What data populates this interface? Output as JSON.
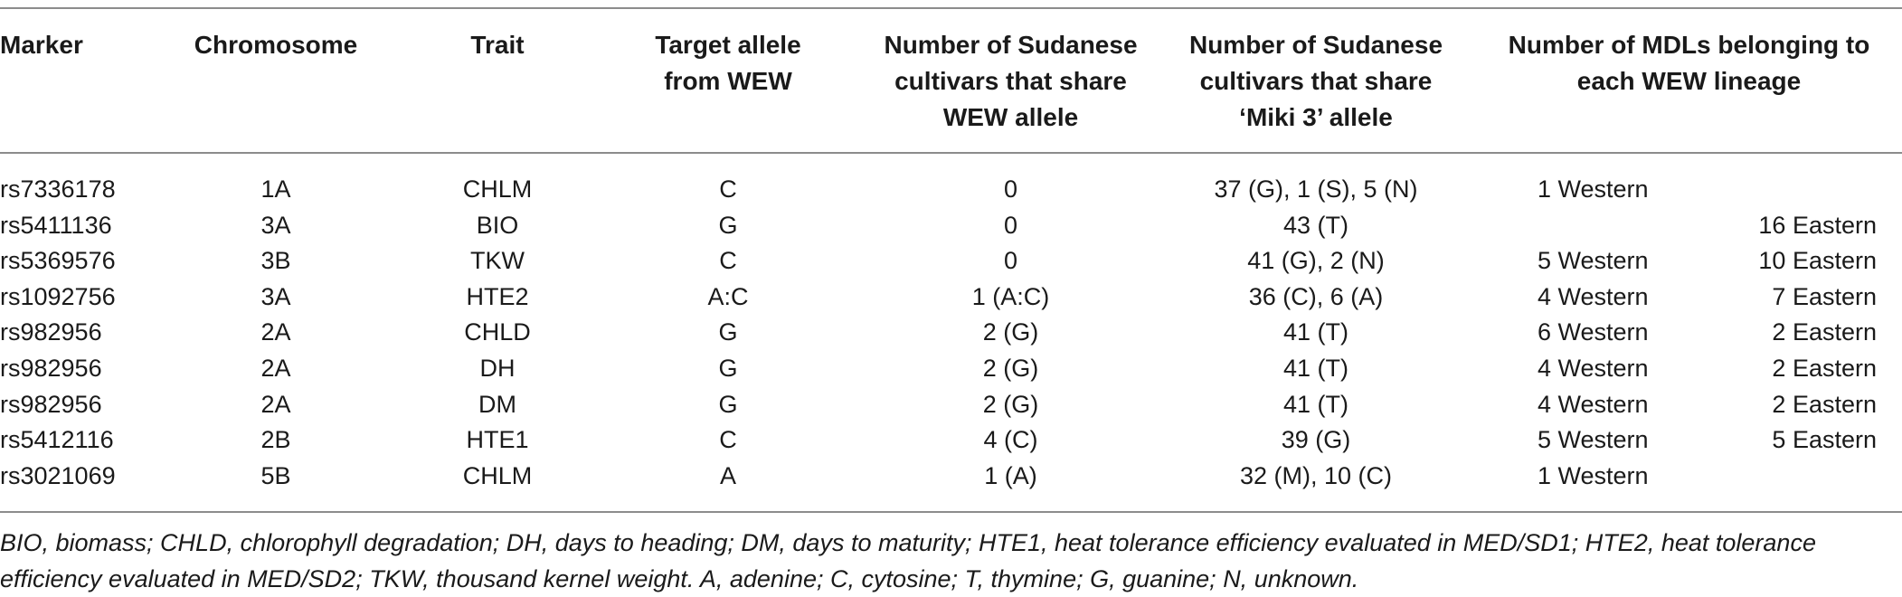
{
  "headers": {
    "marker": "Marker",
    "chromosome": "Chromosome",
    "trait": "Trait",
    "target_allele": "Target allele from WEW",
    "sudanese_wew": "Number of Sudanese cultivars that share WEW allele",
    "sudanese_miki": "Number of Sudanese cultivars that share ‘Miki 3’ allele",
    "mdls": "Number of MDLs belonging to each WEW lineage"
  },
  "rows": [
    {
      "marker": "rs7336178",
      "chromosome": "1A",
      "trait": "CHLM",
      "target_allele": "C",
      "sudanese_wew": "0",
      "sudanese_miki": "37 (G), 1 (S), 5 (N)",
      "western": "1 Western",
      "eastern": ""
    },
    {
      "marker": "rs5411136",
      "chromosome": "3A",
      "trait": "BIO",
      "target_allele": "G",
      "sudanese_wew": "0",
      "sudanese_miki": "43 (T)",
      "western": "",
      "eastern": "16 Eastern"
    },
    {
      "marker": "rs5369576",
      "chromosome": "3B",
      "trait": "TKW",
      "target_allele": "C",
      "sudanese_wew": "0",
      "sudanese_miki": "41 (G), 2 (N)",
      "western": "5 Western",
      "eastern": "10 Eastern"
    },
    {
      "marker": "rs1092756",
      "chromosome": "3A",
      "trait": "HTE2",
      "target_allele": "A:C",
      "sudanese_wew": "1 (A:C)",
      "sudanese_miki": "36 (C), 6 (A)",
      "western": "4 Western",
      "eastern": "7 Eastern"
    },
    {
      "marker": "rs982956",
      "chromosome": "2A",
      "trait": "CHLD",
      "target_allele": "G",
      "sudanese_wew": "2 (G)",
      "sudanese_miki": "41 (T)",
      "western": "6 Western",
      "eastern": "2 Eastern"
    },
    {
      "marker": "rs982956",
      "chromosome": "2A",
      "trait": "DH",
      "target_allele": "G",
      "sudanese_wew": "2 (G)",
      "sudanese_miki": "41 (T)",
      "western": "4 Western",
      "eastern": "2 Eastern"
    },
    {
      "marker": "rs982956",
      "chromosome": "2A",
      "trait": "DM",
      "target_allele": "G",
      "sudanese_wew": "2 (G)",
      "sudanese_miki": "41 (T)",
      "western": "4 Western",
      "eastern": "2 Eastern"
    },
    {
      "marker": "rs5412116",
      "chromosome": "2B",
      "trait": "HTE1",
      "target_allele": "C",
      "sudanese_wew": "4 (C)",
      "sudanese_miki": "39 (G)",
      "western": "5 Western",
      "eastern": "5 Eastern"
    },
    {
      "marker": "rs3021069",
      "chromosome": "5B",
      "trait": "CHLM",
      "target_allele": "A",
      "sudanese_wew": "1 (A)",
      "sudanese_miki": "32 (M), 10 (C)",
      "western": "1 Western",
      "eastern": ""
    }
  ],
  "footnote": "BIO, biomass; CHLD, chlorophyll degradation; DH, days to heading; DM, days to maturity; HTE1, heat tolerance efficiency evaluated in MED/SD1; HTE2, heat tolerance efficiency evaluated in MED/SD2; TKW, thousand kernel weight. A, adenine; C, cytosine; T, thymine; G, guanine; N, unknown."
}
